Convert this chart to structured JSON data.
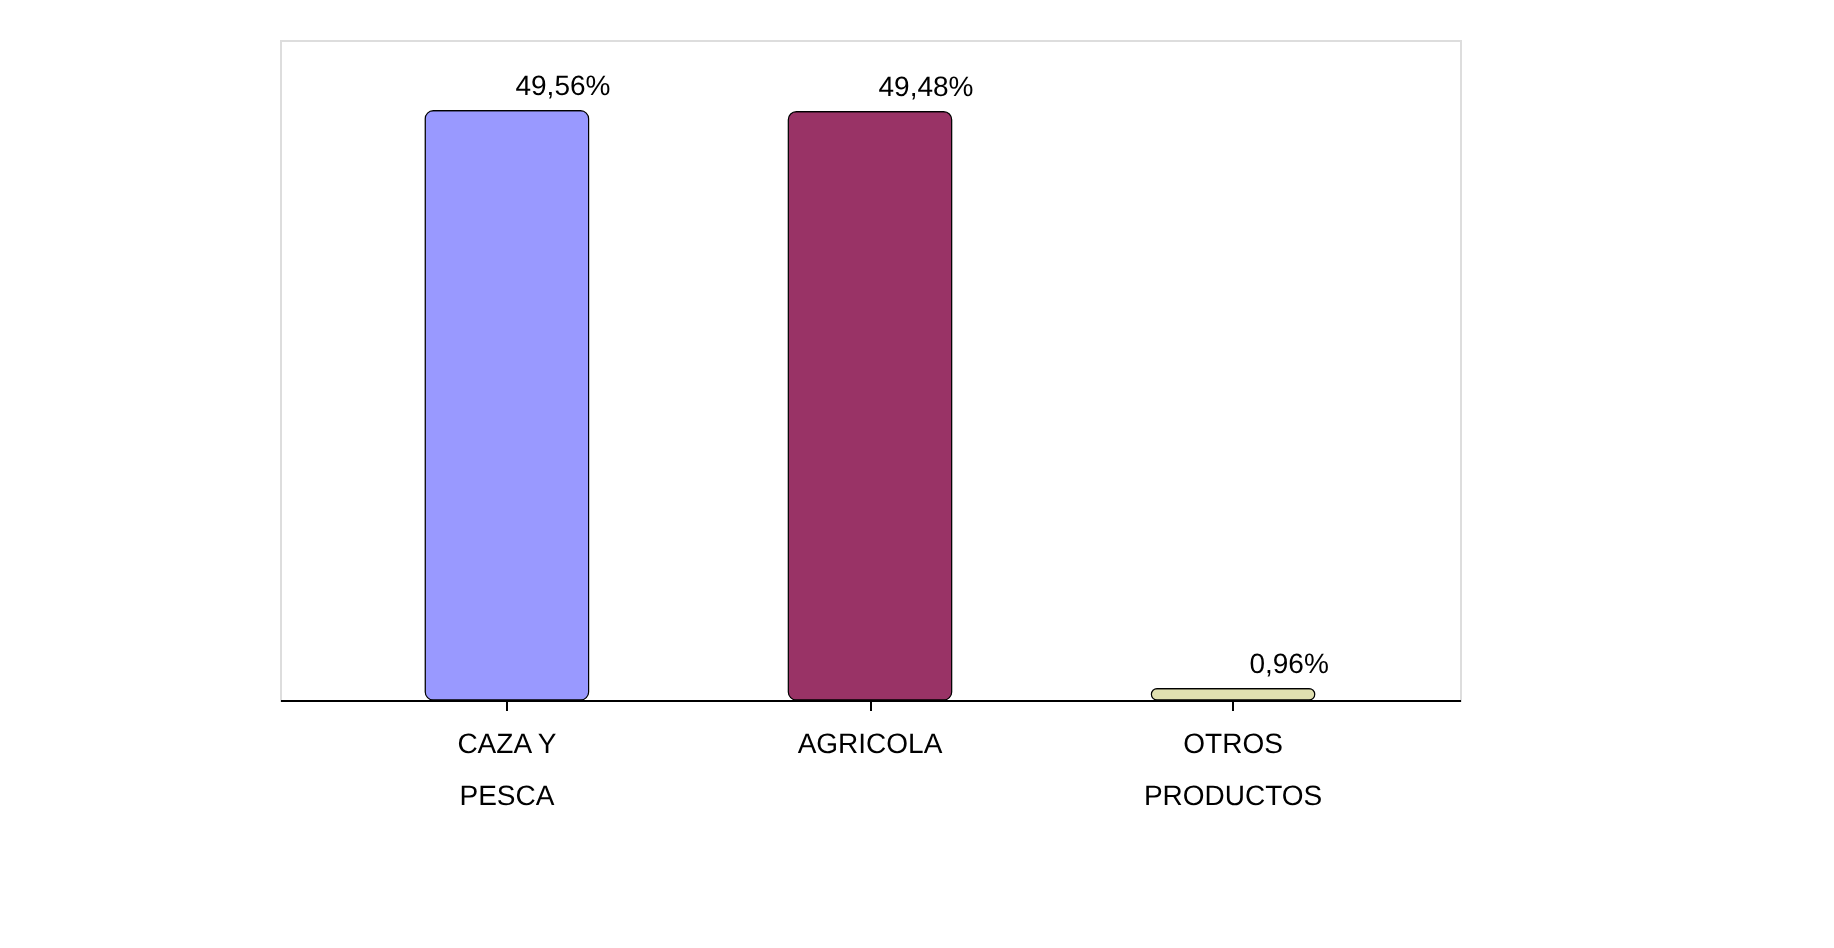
{
  "chart_data": {
    "type": "bar",
    "categories": [
      "CAZA Y PESCA",
      "AGRICOLA",
      "OTROS PRODUCTOS"
    ],
    "values": [
      49.56,
      49.48,
      0.96
    ],
    "colors": [
      "#9999ff",
      "#993366",
      "#e0e0b0"
    ],
    "value_labels": [
      "49,56%",
      "49,48%",
      "0,96%"
    ],
    "tick_labels": "x",
    "grid": false,
    "legend": false
  }
}
